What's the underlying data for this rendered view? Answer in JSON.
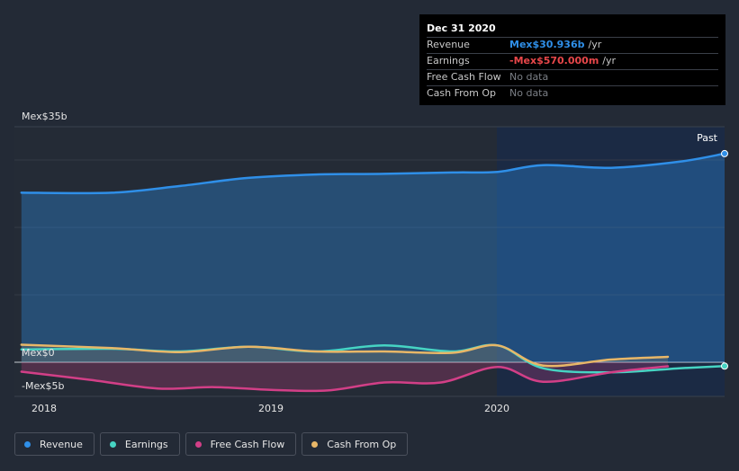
{
  "chart_data": {
    "type": "area",
    "x_ticks": [
      "2018",
      "2019",
      "2020"
    ],
    "y_ticks": [
      "Mex$35b",
      "Mex$0",
      "-Mex$5b"
    ],
    "past_label": "Past",
    "ylim": [
      -5,
      35
    ],
    "series": [
      {
        "name": "Revenue",
        "color": "#2f8fe8",
        "x": [
          2017.9,
          2018.3,
          2018.6,
          2018.9,
          2019.2,
          2019.5,
          2019.8,
          2020.0,
          2020.2,
          2020.5,
          2020.8,
          2021.0
        ],
        "values": [
          25.2,
          25.2,
          26.2,
          27.4,
          27.9,
          28.0,
          28.2,
          28.3,
          29.3,
          28.9,
          29.8,
          31.0
        ]
      },
      {
        "name": "Earnings",
        "color": "#46d4c3",
        "x": [
          2017.9,
          2018.3,
          2018.6,
          2018.9,
          2019.2,
          2019.5,
          2019.8,
          2020.0,
          2020.2,
          2020.5,
          2020.8,
          2021.0
        ],
        "values": [
          1.9,
          2.0,
          1.6,
          2.3,
          1.6,
          2.5,
          1.6,
          2.5,
          -0.9,
          -1.5,
          -0.9,
          -0.57
        ]
      },
      {
        "name": "Free Cash Flow",
        "color": "#d23f87",
        "x": [
          2017.9,
          2018.2,
          2018.5,
          2018.75,
          2019.0,
          2019.25,
          2019.5,
          2019.75,
          2020.0,
          2020.2,
          2020.5,
          2020.75
        ],
        "values": [
          -1.4,
          -2.6,
          -3.9,
          -3.7,
          -4.1,
          -4.2,
          -3.0,
          -3.0,
          -0.7,
          -2.9,
          -1.5,
          -0.6
        ]
      },
      {
        "name": "Cash From Op",
        "color": "#e8b768",
        "x": [
          2017.9,
          2018.3,
          2018.6,
          2018.9,
          2019.2,
          2019.5,
          2019.8,
          2020.0,
          2020.2,
          2020.5,
          2020.75
        ],
        "values": [
          2.6,
          2.1,
          1.5,
          2.3,
          1.6,
          1.6,
          1.4,
          2.5,
          -0.5,
          0.4,
          0.8
        ]
      }
    ]
  },
  "tooltip": {
    "date": "Dec 31 2020",
    "rows": [
      {
        "label": "Revenue",
        "value": "Mex$30.936b",
        "unit": "/yr",
        "color": "#2f8fe8"
      },
      {
        "label": "Earnings",
        "value": "-Mex$570.000m",
        "unit": "/yr",
        "color": "#e8474a"
      },
      {
        "label": "Free Cash Flow",
        "value": "No data",
        "unit": ""
      },
      {
        "label": "Cash From Op",
        "value": "No data",
        "unit": ""
      }
    ]
  },
  "legend": [
    {
      "label": "Revenue",
      "color": "#2f8fe8"
    },
    {
      "label": "Earnings",
      "color": "#46d4c3"
    },
    {
      "label": "Free Cash Flow",
      "color": "#d23f87"
    },
    {
      "label": "Cash From Op",
      "color": "#e8b768"
    }
  ]
}
